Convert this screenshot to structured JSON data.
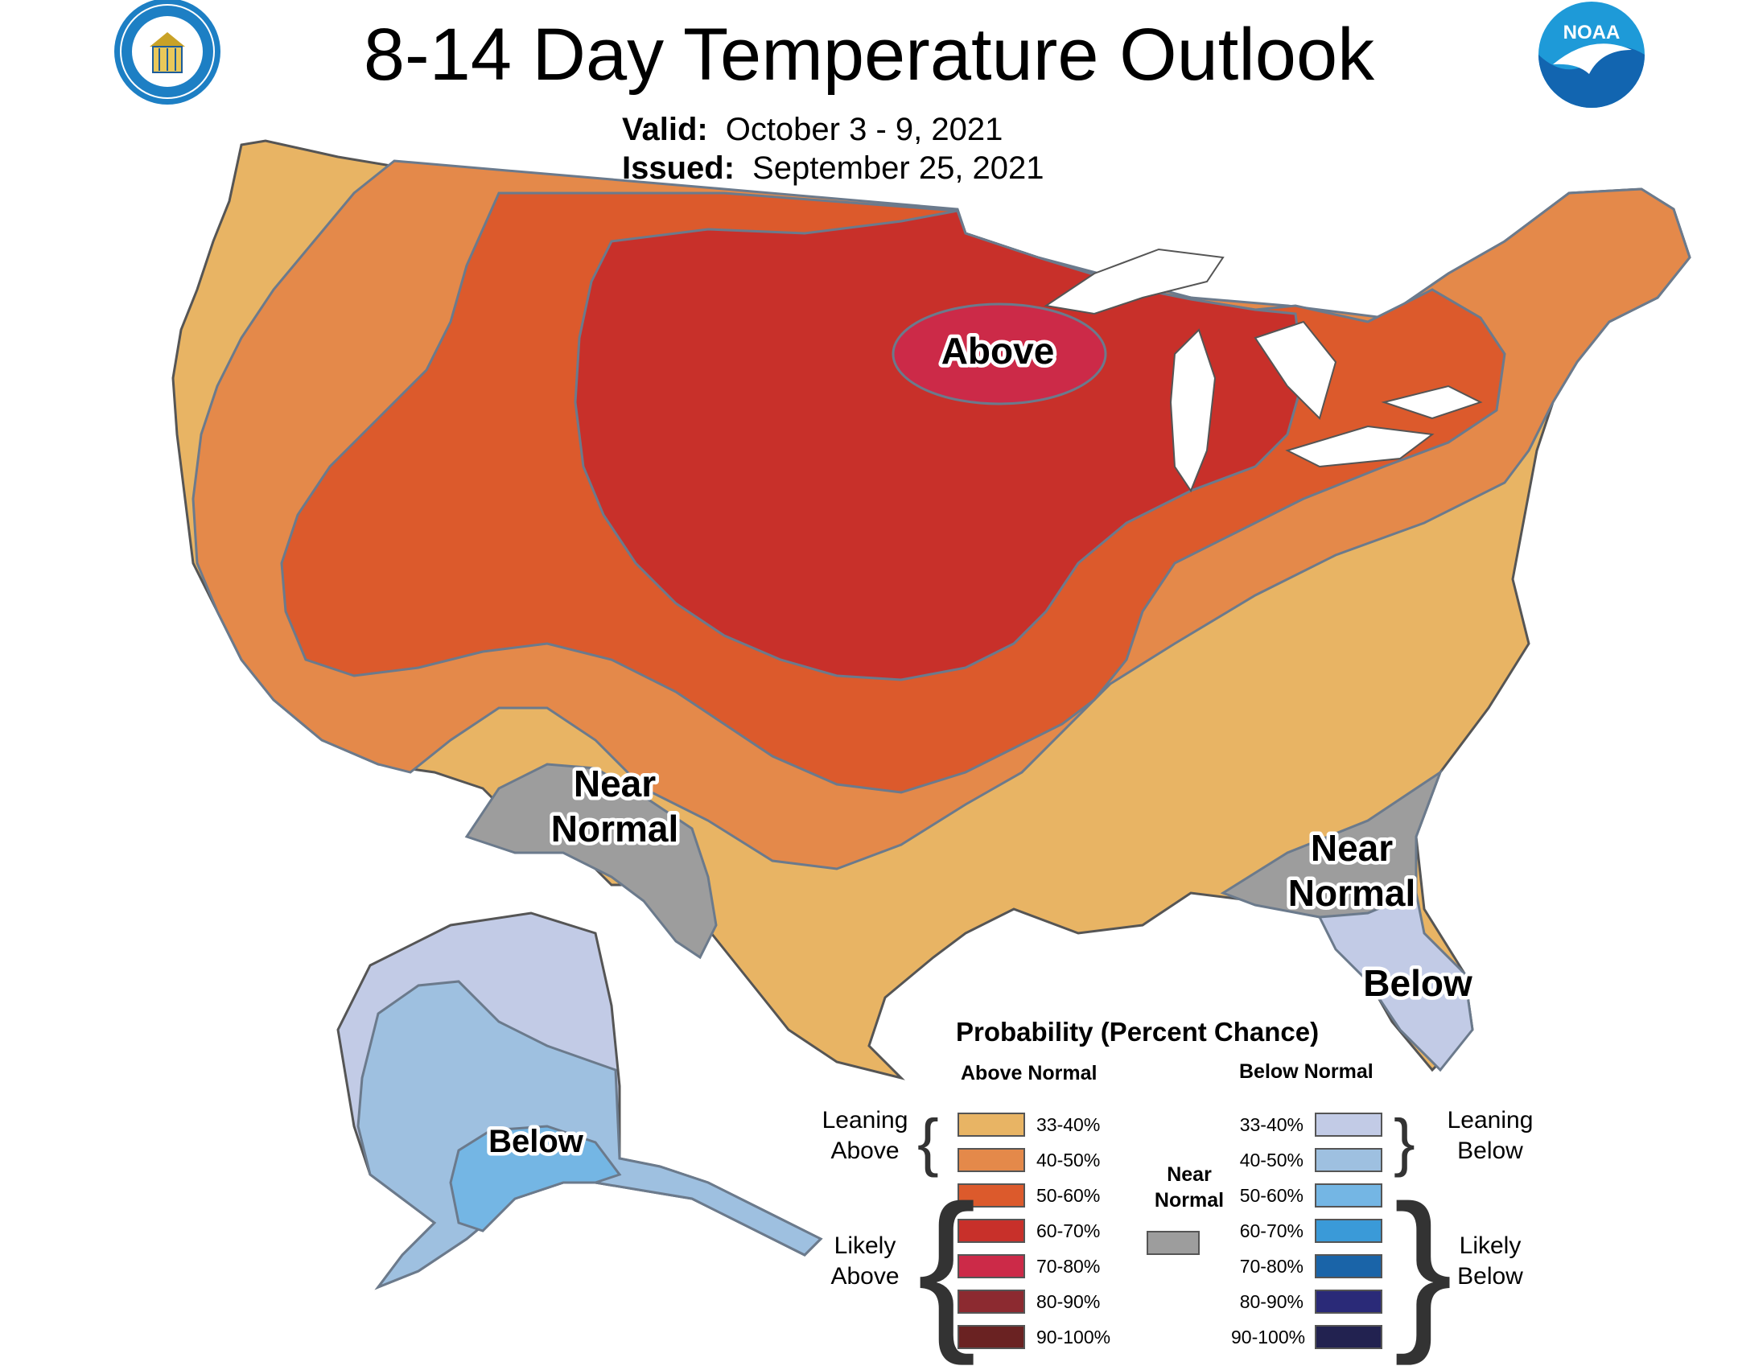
{
  "title": "8-14 Day Temperature Outlook",
  "valid": {
    "label": "Valid:",
    "value": "October 3 - 9, 2021"
  },
  "issued": {
    "label": "Issued:",
    "value": "September 25, 2021"
  },
  "logos": {
    "left": "Department of Commerce seal",
    "right": "NOAA logo",
    "noaa_text": "NOAA"
  },
  "map_labels": {
    "above": "Above",
    "near_normal_sw_1": "Near",
    "near_normal_sw_2": "Normal",
    "near_normal_se_1": "Near",
    "near_normal_se_2": "Normal",
    "below_florida": "Below",
    "below_alaska": "Below"
  },
  "legend": {
    "title": "Probability (Percent Chance)",
    "above_header": "Above Normal",
    "below_header": "Below Normal",
    "near_normal_1": "Near",
    "near_normal_2": "Normal",
    "near_color": "#9d9d9d",
    "leaning_above_1": "Leaning",
    "leaning_above_2": "Above",
    "likely_above_1": "Likely",
    "likely_above_2": "Above",
    "leaning_below_1": "Leaning",
    "leaning_below_2": "Below",
    "likely_below_1": "Likely",
    "likely_below_2": "Below",
    "above": [
      {
        "range": "33-40%",
        "color": "#e8b464"
      },
      {
        "range": "40-50%",
        "color": "#e4894a"
      },
      {
        "range": "50-60%",
        "color": "#dc5a2c"
      },
      {
        "range": "60-70%",
        "color": "#c8302a"
      },
      {
        "range": "70-80%",
        "color": "#cc2a48"
      },
      {
        "range": "80-90%",
        "color": "#8c2a30"
      },
      {
        "range": "90-100%",
        "color": "#6a2222"
      }
    ],
    "below": [
      {
        "range": "33-40%",
        "color": "#c2cbe6"
      },
      {
        "range": "40-50%",
        "color": "#9ec0e0"
      },
      {
        "range": "50-60%",
        "color": "#74b6e4"
      },
      {
        "range": "60-70%",
        "color": "#3a9ad8"
      },
      {
        "range": "70-80%",
        "color": "#1a64a8"
      },
      {
        "range": "80-90%",
        "color": "#2a2a78"
      },
      {
        "range": "90-100%",
        "color": "#222250"
      }
    ]
  }
}
